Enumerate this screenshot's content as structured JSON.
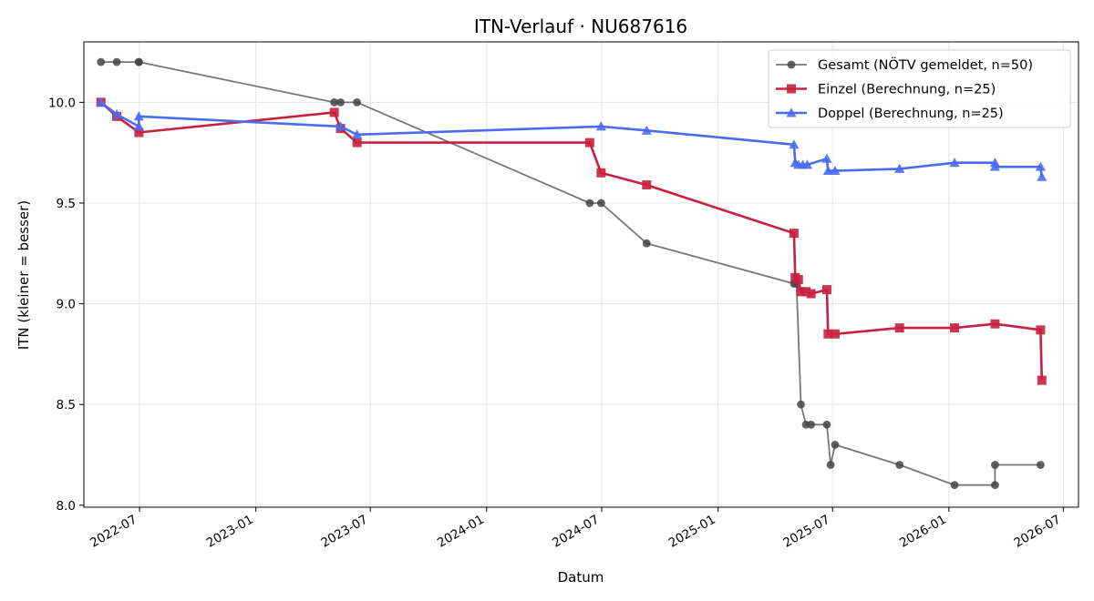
{
  "chart_data": {
    "type": "line",
    "title": "ITN-Verlauf · NU687616",
    "xlabel": "Datum",
    "ylabel": "ITN  (kleiner = besser)",
    "x_type": "date",
    "xlim": [
      "2022-04-04",
      "2026-07-25"
    ],
    "ylim": [
      7.99,
      10.3
    ],
    "x_ticks": [
      {
        "date": "2022-07-01",
        "label": "2022-07"
      },
      {
        "date": "2023-01-01",
        "label": "2023-01"
      },
      {
        "date": "2023-07-01",
        "label": "2023-07"
      },
      {
        "date": "2024-01-01",
        "label": "2024-01"
      },
      {
        "date": "2024-07-01",
        "label": "2024-07"
      },
      {
        "date": "2025-01-01",
        "label": "2025-01"
      },
      {
        "date": "2025-07-01",
        "label": "2025-07"
      },
      {
        "date": "2026-01-01",
        "label": "2026-01"
      },
      {
        "date": "2026-07-01",
        "label": "2026-07"
      }
    ],
    "y_ticks": [
      8.0,
      8.5,
      9.0,
      9.5,
      10.0
    ],
    "y_tick_labels": [
      "8.0",
      "8.5",
      "9.0",
      "9.5",
      "10.0"
    ],
    "grid": true,
    "legend_position": "top-right",
    "series": [
      {
        "name": "Gesamt (NÖTV gemeldet, n=50)",
        "color": "#777777",
        "marker": "circle",
        "points": [
          [
            "2022-05-01",
            10.2
          ],
          [
            "2022-05-26",
            10.2
          ],
          [
            "2022-06-30",
            10.2
          ],
          [
            "2022-06-30",
            10.2
          ],
          [
            "2023-05-05",
            10.0
          ],
          [
            "2023-05-15",
            10.0
          ],
          [
            "2023-06-10",
            10.0
          ],
          [
            "2024-06-12",
            9.5
          ],
          [
            "2024-06-30",
            9.5
          ],
          [
            "2024-09-10",
            9.3
          ],
          [
            "2025-05-01",
            9.1
          ],
          [
            "2025-05-05",
            9.1
          ],
          [
            "2025-05-12",
            8.5
          ],
          [
            "2025-05-20",
            8.4
          ],
          [
            "2025-05-28",
            8.4
          ],
          [
            "2025-06-22",
            8.4
          ],
          [
            "2025-06-28",
            8.2
          ],
          [
            "2025-07-05",
            8.3
          ],
          [
            "2025-10-15",
            8.2
          ],
          [
            "2026-01-10",
            8.1
          ],
          [
            "2026-03-15",
            8.1
          ],
          [
            "2026-03-15",
            8.2
          ],
          [
            "2026-05-26",
            8.2
          ]
        ]
      },
      {
        "name": "Einzel (Berechnung, n=25)",
        "color": "#c8203f",
        "marker": "square",
        "points": [
          [
            "2022-05-01",
            10.0
          ],
          [
            "2022-05-26",
            9.93
          ],
          [
            "2022-06-30",
            9.85
          ],
          [
            "2023-05-05",
            9.95
          ],
          [
            "2023-05-15",
            9.87
          ],
          [
            "2023-06-10",
            9.8
          ],
          [
            "2024-06-12",
            9.8
          ],
          [
            "2024-06-30",
            9.65
          ],
          [
            "2024-09-10",
            9.59
          ],
          [
            "2025-05-01",
            9.35
          ],
          [
            "2025-05-03",
            9.13
          ],
          [
            "2025-05-08",
            9.12
          ],
          [
            "2025-05-12",
            9.06
          ],
          [
            "2025-05-20",
            9.06
          ],
          [
            "2025-05-28",
            9.05
          ],
          [
            "2025-06-22",
            9.07
          ],
          [
            "2025-06-24",
            8.85
          ],
          [
            "2025-07-05",
            8.85
          ],
          [
            "2025-10-15",
            8.88
          ],
          [
            "2026-01-10",
            8.88
          ],
          [
            "2026-03-15",
            8.9
          ],
          [
            "2026-05-26",
            8.87
          ],
          [
            "2026-05-28",
            8.62
          ]
        ]
      },
      {
        "name": "Doppel (Berechnung, n=25)",
        "color": "#4a6cf0",
        "marker": "triangle",
        "points": [
          [
            "2022-05-01",
            10.0
          ],
          [
            "2022-05-26",
            9.94
          ],
          [
            "2022-06-30",
            9.88
          ],
          [
            "2022-06-30",
            9.93
          ],
          [
            "2023-05-15",
            9.88
          ],
          [
            "2023-06-10",
            9.84
          ],
          [
            "2024-06-30",
            9.88
          ],
          [
            "2024-09-10",
            9.86
          ],
          [
            "2025-05-01",
            9.79
          ],
          [
            "2025-05-03",
            9.7
          ],
          [
            "2025-05-08",
            9.69
          ],
          [
            "2025-05-15",
            9.69
          ],
          [
            "2025-05-22",
            9.69
          ],
          [
            "2025-06-22",
            9.72
          ],
          [
            "2025-06-24",
            9.66
          ],
          [
            "2025-07-05",
            9.66
          ],
          [
            "2025-10-15",
            9.67
          ],
          [
            "2026-01-10",
            9.7
          ],
          [
            "2026-03-15",
            9.7
          ],
          [
            "2026-03-15",
            9.68
          ],
          [
            "2026-05-26",
            9.68
          ],
          [
            "2026-05-28",
            9.63
          ]
        ]
      }
    ]
  }
}
